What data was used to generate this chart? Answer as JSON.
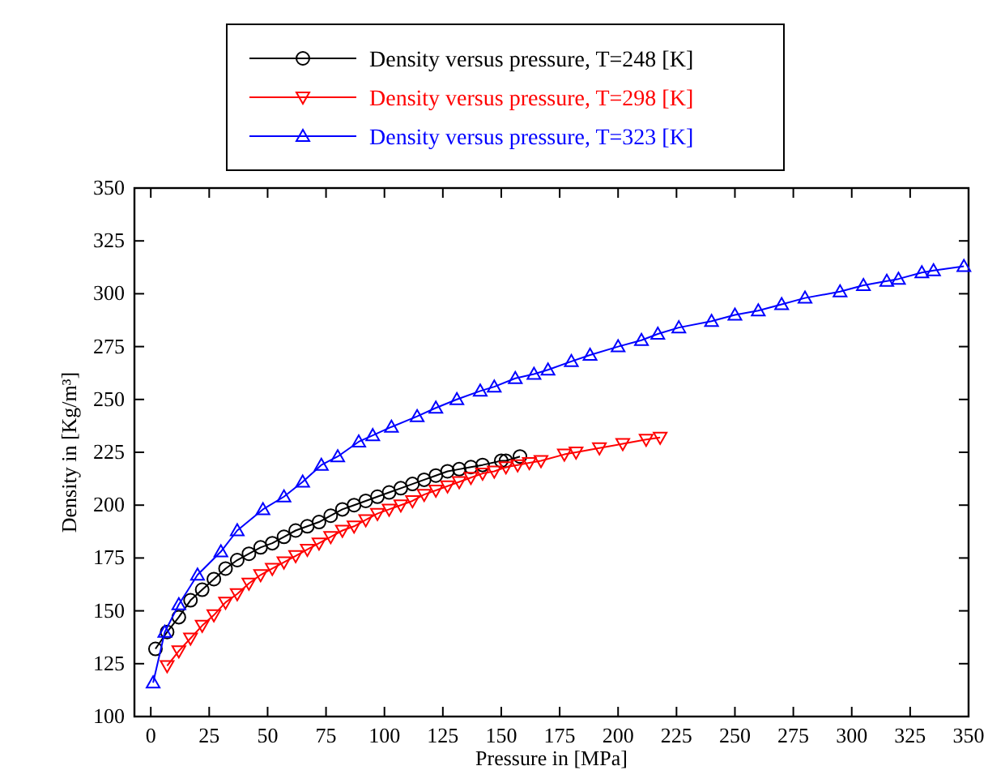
{
  "chart_data": {
    "type": "line",
    "xlabel": "Pressure in [MPa]",
    "ylabel": "Density in [Kg/m³]",
    "xlim": [
      -7,
      350
    ],
    "ylim": [
      100,
      350
    ],
    "xticks": [
      0,
      25,
      50,
      75,
      100,
      125,
      150,
      175,
      200,
      225,
      250,
      275,
      300,
      325,
      350
    ],
    "yticks": [
      100,
      125,
      150,
      175,
      200,
      225,
      250,
      275,
      300,
      325,
      350
    ],
    "grid": false,
    "legend": "top",
    "line_style": "solid",
    "series": [
      {
        "name": "Density versus pressure, T=248 [K]",
        "color": "#000000",
        "marker": "circle",
        "x": [
          2,
          7,
          12,
          17,
          22,
          27,
          32,
          37,
          42,
          47,
          52,
          57,
          62,
          67,
          72,
          77,
          82,
          87,
          92,
          97,
          102,
          107,
          112,
          117,
          122,
          127,
          132,
          137,
          142,
          150,
          152,
          158
        ],
        "values": [
          132,
          140,
          147,
          155,
          160,
          165,
          170,
          174,
          177,
          180,
          182,
          185,
          188,
          190,
          192,
          195,
          198,
          200,
          202,
          204,
          206,
          208,
          210,
          212,
          214,
          216,
          217,
          218,
          219,
          221,
          221,
          223
        ]
      },
      {
        "name": "Density versus pressure, T=298 [K]",
        "color": "#ff0000",
        "marker": "triangle-down",
        "x": [
          7,
          12,
          17,
          22,
          27,
          32,
          37,
          42,
          47,
          52,
          57,
          62,
          67,
          72,
          77,
          82,
          87,
          92,
          97,
          102,
          107,
          112,
          117,
          122,
          127,
          132,
          137,
          142,
          147,
          152,
          157,
          162,
          167,
          177,
          182,
          192,
          202,
          212,
          218
        ],
        "values": [
          124,
          131,
          137,
          143,
          148,
          154,
          158,
          163,
          167,
          170,
          173,
          176,
          179,
          182,
          185,
          188,
          190,
          193,
          196,
          198,
          200,
          202,
          205,
          207,
          209,
          211,
          213,
          215,
          216,
          218,
          219,
          220,
          221,
          224,
          225,
          227,
          229,
          231,
          232
        ]
      },
      {
        "name": "Density versus pressure, T=323 [K]",
        "color": "#0000ff",
        "marker": "triangle",
        "x": [
          1,
          6,
          12,
          20,
          30,
          37,
          48,
          57,
          65,
          73,
          80,
          89,
          95,
          103,
          114,
          122,
          131,
          141,
          147,
          156,
          164,
          170,
          180,
          188,
          200,
          210,
          217,
          226,
          240,
          250,
          260,
          270,
          280,
          295,
          305,
          315,
          320,
          330,
          335,
          348
        ],
        "values": [
          116,
          140,
          153,
          167,
          178,
          188,
          198,
          204,
          211,
          219,
          223,
          230,
          233,
          237,
          242,
          246,
          250,
          254,
          256,
          260,
          262,
          264,
          268,
          271,
          275,
          278,
          281,
          284,
          287,
          290,
          292,
          295,
          298,
          301,
          304,
          306,
          307,
          310,
          311,
          313
        ]
      }
    ]
  }
}
